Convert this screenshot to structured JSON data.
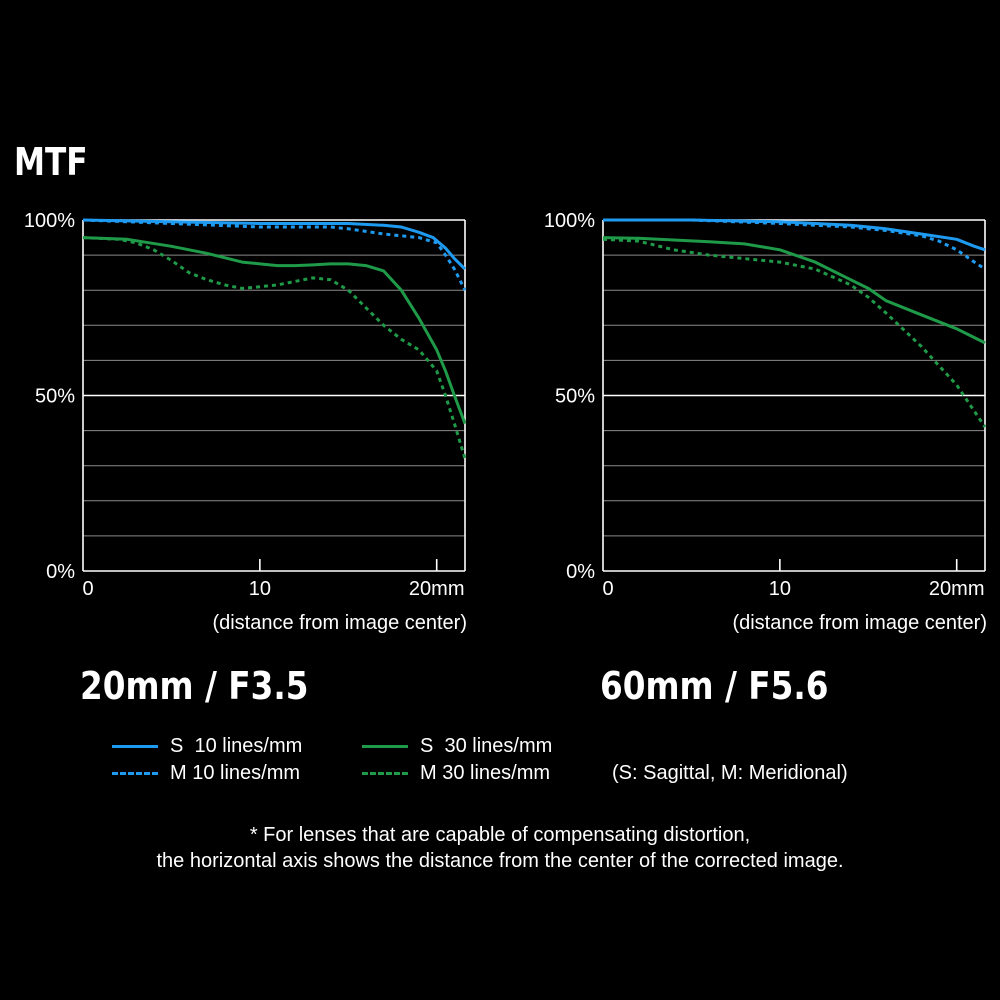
{
  "title": "MTF",
  "colors": {
    "sagittal_10": "#1e9bf0",
    "meridional_10": "#1e9bf0",
    "sagittal_30": "#1f9a48",
    "meridional_30": "#1f9a48",
    "grid": "#8a8a8a",
    "axis": "#ffffff"
  },
  "chart_data": [
    {
      "type": "line",
      "caption": "20mm / F3.5",
      "xlabel": "(distance from image center)",
      "x_ticks": [
        "0",
        "10",
        "20mm"
      ],
      "x_tick_values": [
        0,
        10,
        20
      ],
      "y_ticks": [
        "100%",
        "50%",
        "0%"
      ],
      "y_tick_values": [
        100,
        50,
        0
      ],
      "xlim": [
        0,
        21.6
      ],
      "ylim": [
        0,
        100
      ],
      "grid": true,
      "series": [
        {
          "name": "S  10 lines/mm",
          "style": "solid",
          "color_key": "sagittal_10",
          "x": [
            0,
            5,
            10,
            15,
            17,
            18,
            19,
            19.8,
            20.5,
            21,
            21.6
          ],
          "y": [
            100,
            99.5,
            99,
            99,
            98.5,
            98,
            96.5,
            95,
            92,
            89,
            86
          ]
        },
        {
          "name": "M 10 lines/mm",
          "style": "dashed",
          "color_key": "meridional_10",
          "x": [
            0,
            5,
            10,
            14,
            15,
            17,
            19,
            20,
            20.5,
            21,
            21.6
          ],
          "y": [
            100,
            99,
            98,
            98,
            97.5,
            96,
            95,
            93.5,
            90,
            86,
            80
          ]
        },
        {
          "name": "S  30 lines/mm",
          "style": "solid",
          "color_key": "sagittal_30",
          "x": [
            0,
            2.5,
            5,
            7,
            9,
            10,
            11,
            12,
            13,
            14,
            15,
            16,
            17,
            18,
            19,
            20,
            20.5,
            21,
            21.6
          ],
          "y": [
            95,
            94.5,
            92.5,
            90.5,
            88,
            87.5,
            87,
            87,
            87.2,
            87.5,
            87.5,
            87,
            85.5,
            80,
            72,
            63,
            57,
            50,
            42
          ]
        },
        {
          "name": "M 30 lines/mm",
          "style": "dashed",
          "color_key": "meridional_30",
          "x": [
            0,
            2,
            3,
            4,
            5,
            6,
            7,
            8,
            9,
            10,
            11,
            12,
            13,
            14,
            15,
            16,
            17,
            18,
            19,
            20,
            20.5,
            21,
            21.6
          ],
          "y": [
            95,
            94.5,
            93.5,
            91.5,
            88.5,
            85,
            83,
            81.5,
            80.5,
            81,
            81.5,
            82.5,
            83.5,
            83,
            80,
            75,
            70,
            66,
            63,
            57,
            50,
            42,
            32
          ]
        }
      ]
    },
    {
      "type": "line",
      "caption": "60mm / F5.6",
      "xlabel": "(distance from image center)",
      "x_ticks": [
        "0",
        "10",
        "20mm"
      ],
      "x_tick_values": [
        0,
        10,
        20
      ],
      "y_ticks": [
        "100%",
        "50%",
        "0%"
      ],
      "y_tick_values": [
        100,
        50,
        0
      ],
      "xlim": [
        0,
        21.6
      ],
      "ylim": [
        0,
        100
      ],
      "grid": true,
      "series": [
        {
          "name": "S  10 lines/mm",
          "style": "solid",
          "color_key": "sagittal_10",
          "x": [
            0,
            5,
            10,
            14,
            16,
            18,
            20,
            21,
            21.6
          ],
          "y": [
            100,
            100,
            99.5,
            98.5,
            97.5,
            96,
            94.5,
            92.5,
            91.5
          ]
        },
        {
          "name": "M 10 lines/mm",
          "style": "dashed",
          "color_key": "meridional_10",
          "x": [
            0,
            5,
            10,
            14,
            16,
            18,
            19,
            20,
            21,
            21.6
          ],
          "y": [
            100,
            100,
            99,
            98,
            97,
            95.5,
            94,
            91.5,
            88,
            86
          ]
        },
        {
          "name": "S  30 lines/mm",
          "style": "solid",
          "color_key": "sagittal_30",
          "x": [
            0,
            2,
            4,
            6,
            8,
            10,
            12,
            14,
            15,
            16,
            18,
            20,
            21,
            21.6
          ],
          "y": [
            95,
            94.8,
            94.3,
            93.8,
            93.2,
            91.5,
            88,
            83,
            80.5,
            77,
            73,
            69,
            66.5,
            65
          ]
        },
        {
          "name": "M 30 lines/mm",
          "style": "dashed",
          "color_key": "meridional_30",
          "x": [
            0,
            2,
            4,
            6,
            8,
            10,
            12,
            14,
            15,
            16,
            18,
            20,
            21,
            21.6
          ],
          "y": [
            94.5,
            94,
            91.5,
            90,
            89,
            88,
            86,
            81.5,
            78,
            73.5,
            64,
            53,
            45.5,
            41
          ]
        }
      ]
    }
  ],
  "legend": {
    "s10": "S  10 lines/mm",
    "m10": "M 10 lines/mm",
    "s30": "S  30 lines/mm",
    "m30": "M 30 lines/mm",
    "key": "(S: Sagittal, M: Meridional)"
  },
  "note": {
    "line1": "* For lenses that are capable of compensating distortion,",
    "line2": "the horizontal axis shows the distance from the center of the corrected image."
  }
}
